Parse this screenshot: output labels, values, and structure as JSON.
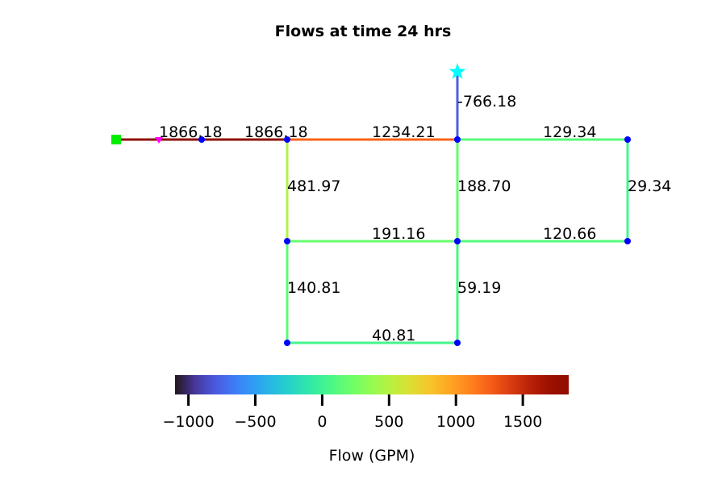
{
  "title": "Flows at time 24 hrs",
  "colorbar": {
    "label": "Flow (GPM)",
    "min": -1100,
    "max": 1843,
    "ticks": [
      {
        "value": -1000,
        "label": "−1000"
      },
      {
        "value": -500,
        "label": "−500"
      },
      {
        "value": 0,
        "label": "0"
      },
      {
        "value": 500,
        "label": "500"
      },
      {
        "value": 1000,
        "label": "1000"
      },
      {
        "value": 1500,
        "label": "1500"
      }
    ],
    "colormap": "turbo"
  },
  "colors": {
    "node": "#0000ff",
    "reservoir": "#00ee00",
    "tank": "#00ffff",
    "pump": "#ff00ff"
  },
  "network": {
    "nodes": [
      {
        "id": "reservoir",
        "type": "reservoir"
      },
      {
        "id": "pump",
        "type": "pump"
      },
      {
        "id": "n1",
        "type": "junction"
      },
      {
        "id": "n2",
        "type": "junction"
      },
      {
        "id": "n3",
        "type": "junction"
      },
      {
        "id": "n4",
        "type": "junction"
      },
      {
        "id": "n5",
        "type": "junction"
      },
      {
        "id": "n6",
        "type": "junction"
      },
      {
        "id": "n7",
        "type": "junction"
      },
      {
        "id": "n8",
        "type": "junction"
      },
      {
        "id": "n9",
        "type": "junction"
      },
      {
        "id": "n10",
        "type": "junction"
      },
      {
        "id": "tank",
        "type": "tank"
      }
    ],
    "links": [
      {
        "from": "reservoir",
        "to": "pump",
        "flow": 1866.18,
        "label": ""
      },
      {
        "from": "pump",
        "to": "n1",
        "flow": 1866.18,
        "label": "1866.18"
      },
      {
        "from": "n1",
        "to": "n2",
        "flow": 1866.18,
        "label": "1866.18"
      },
      {
        "from": "n2",
        "to": "n3",
        "flow": 1234.21,
        "label": "1234.21"
      },
      {
        "from": "n3",
        "to": "tank",
        "flow": -766.18,
        "label": "-766.18"
      },
      {
        "from": "n3",
        "to": "n4",
        "flow": 129.34,
        "label": "129.34"
      },
      {
        "from": "n4",
        "to": "n7",
        "flow": 29.34,
        "label": "29.34"
      },
      {
        "from": "n2",
        "to": "n5",
        "flow": 481.97,
        "label": "481.97"
      },
      {
        "from": "n3",
        "to": "n6",
        "flow": 188.7,
        "label": "188.70"
      },
      {
        "from": "n5",
        "to": "n6",
        "flow": 191.16,
        "label": "191.16"
      },
      {
        "from": "n6",
        "to": "n7",
        "flow": 120.66,
        "label": "120.66"
      },
      {
        "from": "n5",
        "to": "n9",
        "flow": 140.81,
        "label": "140.81"
      },
      {
        "from": "n6",
        "to": "n10",
        "flow": 59.19,
        "label": "59.19"
      },
      {
        "from": "n9",
        "to": "n10",
        "flow": 40.81,
        "label": "40.81"
      }
    ]
  }
}
